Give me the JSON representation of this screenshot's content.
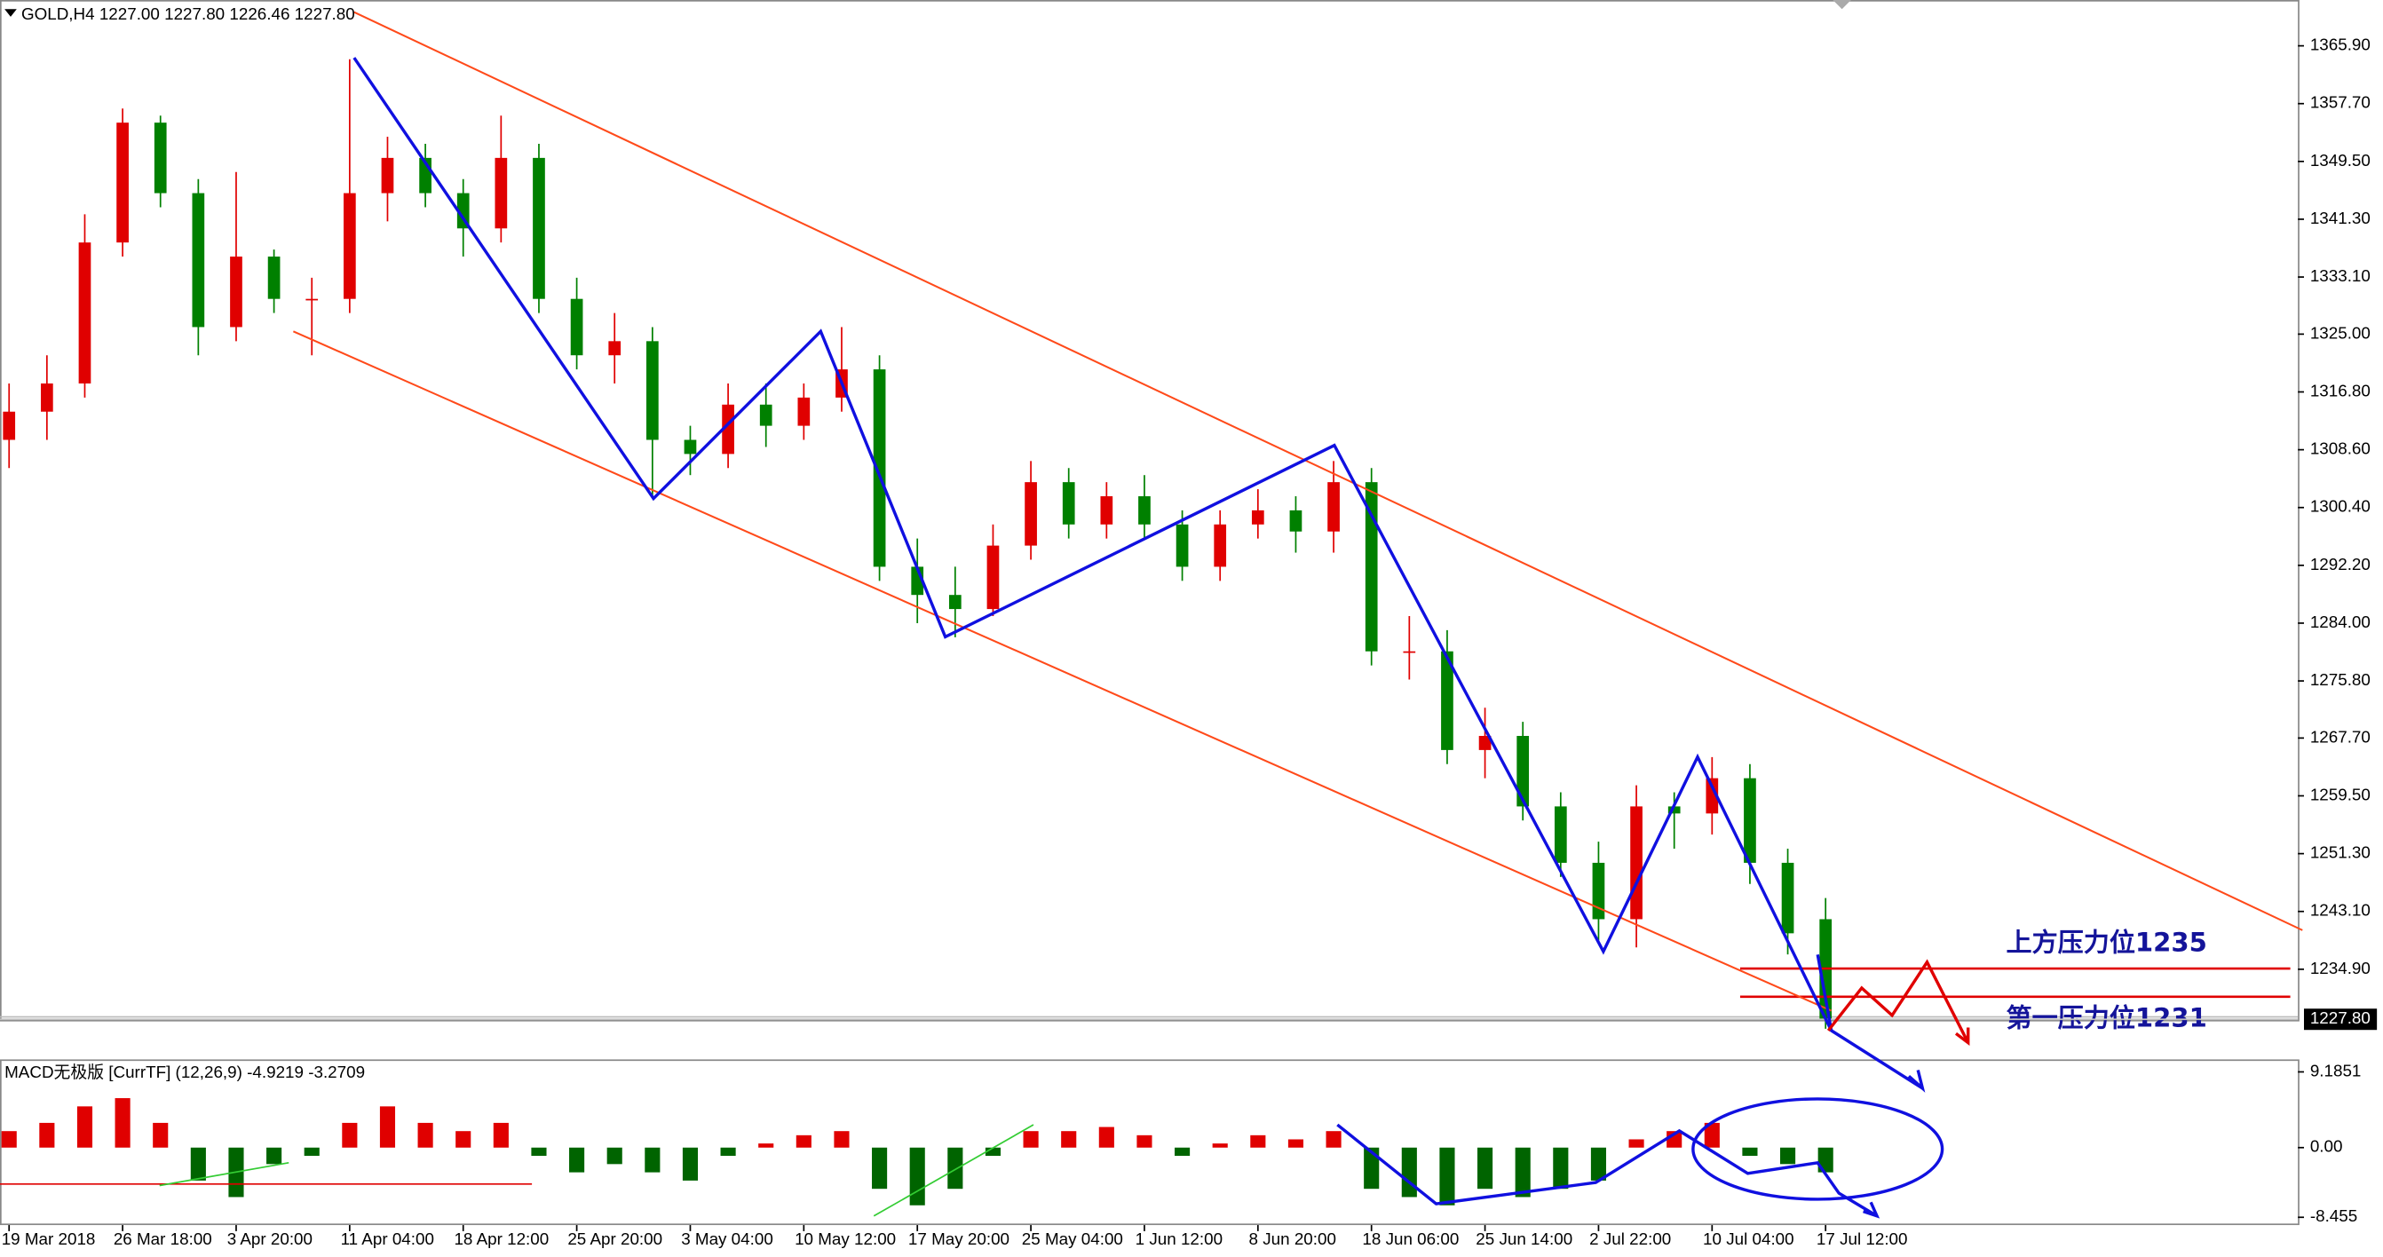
{
  "chart_data": {
    "type": "candlestick",
    "title": "GOLD,H4  1227.00 1227.80 1226.46 1227.80",
    "up_color": "#e00000",
    "down_color": "#008000",
    "open": [
      1310,
      1314,
      1318,
      1338,
      1355,
      1345,
      1326,
      1336,
      1330,
      1330,
      1345,
      1350,
      1345,
      1340,
      1350,
      1330,
      1322,
      1324,
      1310,
      1308,
      1315,
      1312,
      1316,
      1320,
      1292,
      1288,
      1286,
      1295,
      1304,
      1298,
      1302,
      1298,
      1292,
      1298,
      1300,
      1297,
      1304,
      1280,
      1280,
      1266,
      1268,
      1258,
      1250,
      1242,
      1258,
      1257,
      1262,
      1250,
      1242
    ],
    "high": [
      1318,
      1322,
      1342,
      1357,
      1356,
      1347,
      1348,
      1337,
      1333,
      1364,
      1353,
      1352,
      1347,
      1356,
      1352,
      1333,
      1328,
      1326,
      1312,
      1318,
      1318,
      1318,
      1326,
      1322,
      1296,
      1292,
      1298,
      1307,
      1306,
      1304,
      1305,
      1300,
      1300,
      1303,
      1302,
      1307,
      1306,
      1285,
      1283,
      1272,
      1270,
      1260,
      1253,
      1261,
      1260,
      1265,
      1264,
      1252,
      1245
    ],
    "low": [
      1306,
      1310,
      1316,
      1336,
      1343,
      1322,
      1324,
      1328,
      1322,
      1328,
      1341,
      1343,
      1336,
      1338,
      1328,
      1320,
      1318,
      1302,
      1305,
      1306,
      1309,
      1310,
      1314,
      1290,
      1284,
      1282,
      1285,
      1293,
      1296,
      1296,
      1296,
      1290,
      1290,
      1296,
      1294,
      1294,
      1278,
      1276,
      1264,
      1262,
      1256,
      1248,
      1239,
      1238,
      1252,
      1254,
      1247,
      1237,
      1226.46
    ],
    "close": [
      1314,
      1318,
      1338,
      1355,
      1345,
      1326,
      1336,
      1330,
      1330,
      1345,
      1350,
      1345,
      1340,
      1350,
      1330,
      1322,
      1324,
      1310,
      1308,
      1315,
      1312,
      1316,
      1320,
      1292,
      1288,
      1286,
      1295,
      1304,
      1298,
      1302,
      1298,
      1292,
      1298,
      1300,
      1297,
      1304,
      1280,
      1280,
      1266,
      1268,
      1258,
      1250,
      1242,
      1258,
      1257,
      1262,
      1250,
      1240,
      1227.8
    ],
    "xlim": [
      -0.24,
      60.48
    ],
    "xticks": [
      {
        "value": 0,
        "label": "19 Mar 2018"
      },
      {
        "value": 3,
        "label": "26 Mar 18:00"
      },
      {
        "value": 6,
        "label": "3 Apr 20:00"
      },
      {
        "value": 9,
        "label": "11 Apr 04:00"
      },
      {
        "value": 12,
        "label": "18 Apr 12:00"
      },
      {
        "value": 15,
        "label": "25 Apr 20:00"
      },
      {
        "value": 18,
        "label": "3 May 04:00"
      },
      {
        "value": 21,
        "label": "10 May 12:00"
      },
      {
        "value": 24,
        "label": "17 May 20:00"
      },
      {
        "value": 27,
        "label": "25 May 04:00"
      },
      {
        "value": 30,
        "label": "1 Jun 12:00"
      },
      {
        "value": 33,
        "label": "8 Jun 20:00"
      },
      {
        "value": 36,
        "label": "18 Jun 06:00"
      },
      {
        "value": 39,
        "label": "25 Jun 14:00"
      },
      {
        "value": 42,
        "label": "2 Jul 22:00"
      },
      {
        "value": 45,
        "label": "10 Jul 04:00"
      },
      {
        "value": 48,
        "label": "17 Jul 12:00"
      }
    ],
    "ylim": [
      1227.5,
      1372.4
    ],
    "yticks": [
      {
        "value": 1365.9,
        "label": "1365.90"
      },
      {
        "value": 1357.7,
        "label": "1357.70"
      },
      {
        "value": 1349.5,
        "label": "1349.50"
      },
      {
        "value": 1341.3,
        "label": "1341.30"
      },
      {
        "value": 1333.1,
        "label": "1333.10"
      },
      {
        "value": 1325,
        "label": "1325.00"
      },
      {
        "value": 1316.8,
        "label": "1316.80"
      },
      {
        "value": 1308.6,
        "label": "1308.60"
      },
      {
        "value": 1300.4,
        "label": "1300.40"
      },
      {
        "value": 1292.2,
        "label": "1292.20"
      },
      {
        "value": 1284,
        "label": "1284.00"
      },
      {
        "value": 1275.8,
        "label": "1275.80"
      },
      {
        "value": 1267.7,
        "label": "1267.70"
      },
      {
        "value": 1259.5,
        "label": "1259.50"
      },
      {
        "value": 1251.3,
        "label": "1251.30"
      },
      {
        "value": 1243.1,
        "label": "1243.10"
      },
      {
        "value": 1234.9,
        "label": "1234.90"
      }
    ],
    "last_price": {
      "value": 1227.8,
      "label": "1227.80"
    },
    "levels": [
      {
        "label": "上方压力位1235",
        "value": 1235,
        "color": "#e00000"
      },
      {
        "label": "第一压力位1231",
        "value": 1231,
        "color": "#e00000"
      }
    ],
    "macd": {
      "title": "MACD无极版 [CurrTF] (12,26,9) -4.9219 -3.2709",
      "values": [
        2,
        3,
        5,
        6,
        3,
        -4,
        -6,
        -2,
        -1,
        3,
        5,
        3,
        2,
        3,
        -1,
        -3,
        -2,
        -3,
        -4,
        -1,
        0.5,
        1.5,
        2,
        -5,
        -7,
        -5,
        -1,
        2,
        2,
        2.5,
        1.5,
        -1,
        0.5,
        1.5,
        1,
        2,
        -5,
        -6,
        -7,
        -5,
        -6,
        -5,
        -4,
        1,
        2,
        3,
        -1,
        -2,
        -3
      ],
      "pos_color": "#e00000",
      "neg_color": "#006400",
      "ylim": [
        -9.4,
        10.7
      ],
      "yticks": [
        9.1851,
        {
          "value": 0,
          "label": "0.00"
        },
        -8.455
      ]
    }
  }
}
